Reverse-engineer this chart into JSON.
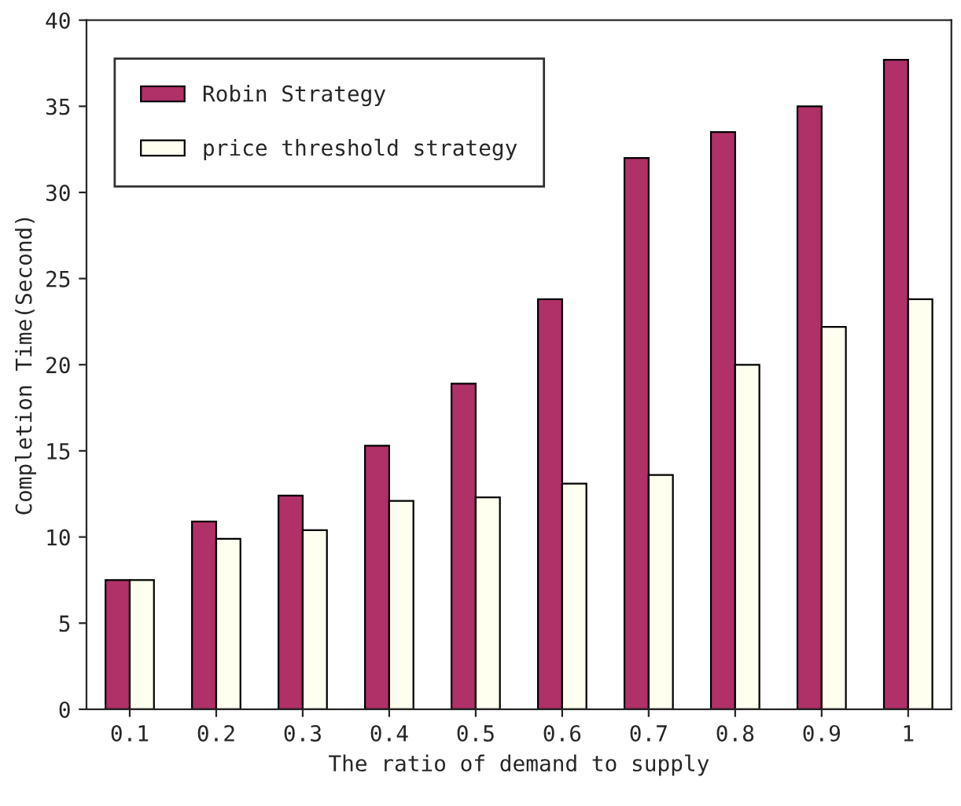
{
  "chart_data": {
    "type": "bar",
    "xlabel": "The ratio of demand to supply",
    "ylabel": "Completion Time(Second)",
    "categories": [
      "0.1",
      "0.2",
      "0.3",
      "0.4",
      "0.5",
      "0.6",
      "0.7",
      "0.8",
      "0.9",
      "1"
    ],
    "series": [
      {
        "name": "Robin Strategy",
        "color": "#b03068",
        "values": [
          7.5,
          10.9,
          12.4,
          15.3,
          18.9,
          23.8,
          32.0,
          33.5,
          35.0,
          37.7
        ]
      },
      {
        "name": "price threshold strategy",
        "color": "#fffff0",
        "values": [
          7.5,
          9.9,
          10.4,
          12.1,
          12.3,
          13.1,
          13.6,
          20.0,
          22.2,
          23.8
        ]
      }
    ],
    "ylim": [
      0,
      40
    ],
    "yticks": [
      0,
      5,
      10,
      15,
      20,
      25,
      30,
      35,
      40
    ],
    "grid": false,
    "legend": "top left"
  }
}
